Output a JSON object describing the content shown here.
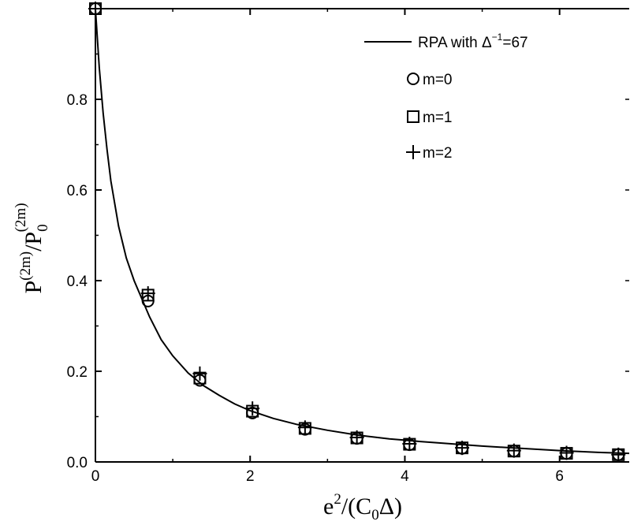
{
  "chart_data": {
    "type": "scatter",
    "xlabel": {
      "base": "e",
      "sup": "2",
      "rest_open": "/(C",
      "sub": "0",
      "rest_close": "Δ)"
    },
    "ylabel": {
      "p1": "P",
      "sup1": "(2m)",
      "slash": "/P",
      "sub2": "0",
      "sup2": "(2m)"
    },
    "xlim": [
      0,
      6.9
    ],
    "ylim": [
      0,
      1.0
    ],
    "xticks": [
      0,
      2,
      4,
      6
    ],
    "xtick_labels": [
      "0",
      "2",
      "4",
      "6"
    ],
    "yticks": [
      0.0,
      0.2,
      0.4,
      0.6,
      0.8
    ],
    "ytick_labels": [
      "0.0",
      "0.2",
      "0.4",
      "0.6",
      "0.8"
    ],
    "grid": false,
    "legend_position": "top-right",
    "legend": {
      "curve_label_prefix": "RPA with ",
      "curve_label_delta": "Δ",
      "curve_label_sup": "−1",
      "curve_label_suffix": "=67",
      "series_labels": [
        "m=0",
        "m=1",
        "m=2"
      ]
    },
    "curve": {
      "name": "RPA with Δ⁻¹=67",
      "x": [
        0,
        0.05,
        0.1,
        0.15,
        0.2,
        0.3,
        0.4,
        0.5,
        0.6,
        0.7,
        0.85,
        1.0,
        1.2,
        1.4,
        1.6,
        1.8,
        2.0,
        2.3,
        2.6,
        3.0,
        3.4,
        3.8,
        4.2,
        4.6,
        5.0,
        5.5,
        6.0,
        6.5,
        6.9
      ],
      "y": [
        1.0,
        0.87,
        0.77,
        0.69,
        0.62,
        0.52,
        0.45,
        0.4,
        0.36,
        0.32,
        0.27,
        0.234,
        0.196,
        0.168,
        0.147,
        0.128,
        0.113,
        0.096,
        0.083,
        0.07,
        0.059,
        0.051,
        0.045,
        0.04,
        0.035,
        0.03,
        0.025,
        0.021,
        0.019
      ]
    },
    "series": [
      {
        "name": "m=0",
        "marker": "circle",
        "x": [
          0,
          0.68,
          1.35,
          2.03,
          2.71,
          3.38,
          4.06,
          4.74,
          5.41,
          6.09,
          6.76
        ],
        "y": [
          1.0,
          0.355,
          0.18,
          0.108,
          0.072,
          0.052,
          0.038,
          0.03,
          0.024,
          0.019,
          0.016
        ]
      },
      {
        "name": "m=1",
        "marker": "square",
        "x": [
          0,
          0.68,
          1.35,
          2.03,
          2.71,
          3.38,
          4.06,
          4.74,
          5.41,
          6.09,
          6.76
        ],
        "y": [
          1.0,
          0.368,
          0.185,
          0.112,
          0.074,
          0.053,
          0.039,
          0.031,
          0.024,
          0.019,
          0.016
        ]
      },
      {
        "name": "m=2",
        "marker": "plus",
        "x": [
          0,
          0.68,
          1.35,
          2.03,
          2.71,
          3.38,
          4.06,
          4.74,
          5.41,
          6.09,
          6.76
        ],
        "y": [
          1.0,
          0.372,
          0.195,
          0.118,
          0.076,
          0.054,
          0.04,
          0.031,
          0.025,
          0.02,
          0.016
        ]
      }
    ]
  }
}
